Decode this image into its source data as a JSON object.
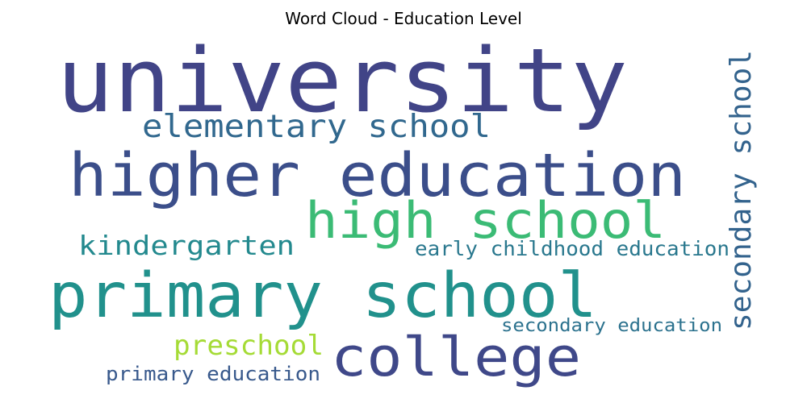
{
  "chart_data": {
    "type": "wordcloud",
    "title": "Word Cloud - Education Level",
    "words": [
      {
        "text": "university",
        "color": "#414487"
      },
      {
        "text": "higher education",
        "color": "#3b4e8a"
      },
      {
        "text": "primary school",
        "color": "#21918c"
      },
      {
        "text": "college",
        "color": "#3f4889"
      },
      {
        "text": "high school",
        "color": "#3bbb75"
      },
      {
        "text": "elementary school",
        "color": "#31688e"
      },
      {
        "text": "secondary school",
        "color": "#33638d"
      },
      {
        "text": "kindergarten",
        "color": "#23898e"
      },
      {
        "text": "early childhood education",
        "color": "#2a788e"
      },
      {
        "text": "preschool",
        "color": "#a5db36"
      },
      {
        "text": "secondary education",
        "color": "#2c728e"
      },
      {
        "text": "primary education",
        "color": "#38598c"
      }
    ]
  }
}
